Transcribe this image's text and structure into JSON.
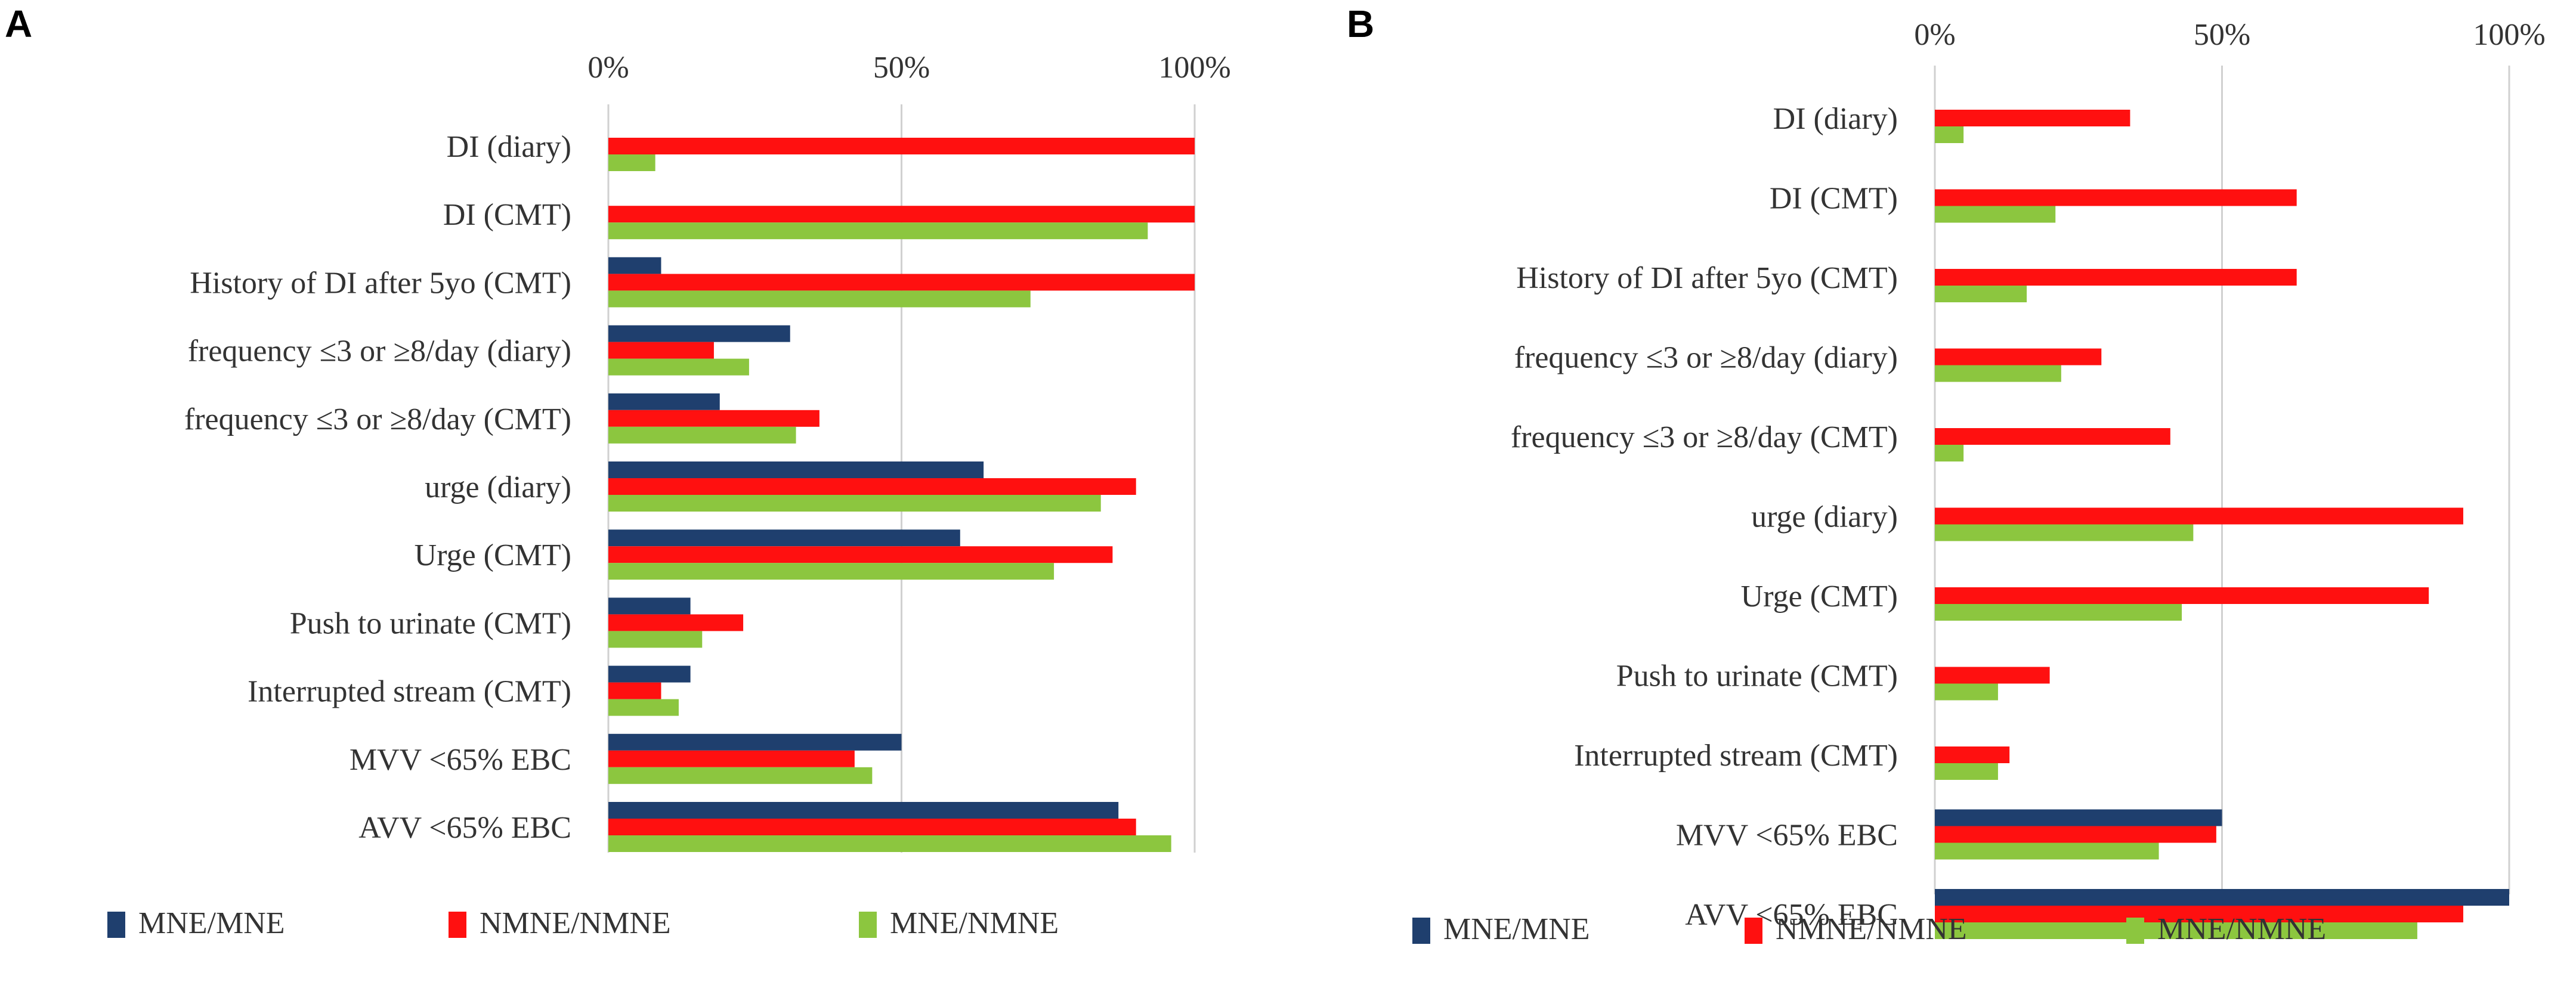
{
  "chart_data": [
    {
      "panel": "A",
      "type": "bar",
      "orientation": "horizontal",
      "xlim": [
        0,
        100
      ],
      "ticks": [
        "0%",
        "50%",
        "100%"
      ],
      "grid": true,
      "legend_position": "bottom",
      "categories": [
        "DI (diary)",
        "DI (CMT)",
        "History of DI after 5yo (CMT)",
        "frequency ≤3  or ≥8/day (diary)",
        "frequency ≤3  or ≥8/day (CMT)",
        "urge (diary)",
        "Urge (CMT)",
        "Push to urinate (CMT)",
        "Interrupted stream (CMT)",
        "MVV <65% EBC",
        "AVV <65% EBC"
      ],
      "series": [
        {
          "name": "MNE/MNE",
          "color": "#1f3f6e",
          "values": [
            0,
            0,
            9,
            31,
            19,
            64,
            60,
            14,
            14,
            50,
            87
          ]
        },
        {
          "name": "NMNE/NMNE",
          "color": "#ff1010",
          "values": [
            100,
            100,
            100,
            18,
            36,
            90,
            86,
            23,
            9,
            42,
            90
          ]
        },
        {
          "name": "MNE/NMNE",
          "color": "#8cc63f",
          "values": [
            8,
            92,
            72,
            24,
            32,
            84,
            76,
            16,
            12,
            45,
            96
          ]
        }
      ]
    },
    {
      "panel": "B",
      "type": "bar",
      "orientation": "horizontal",
      "xlim": [
        0,
        100
      ],
      "ticks": [
        "0%",
        "50%",
        "100%"
      ],
      "grid": true,
      "legend_position": "bottom",
      "categories": [
        "DI (diary)",
        "DI (CMT)",
        "History of DI after 5yo (CMT)",
        "frequency ≤3  or ≥8/day (diary)",
        "frequency ≤3  or ≥8/day (CMT)",
        "urge (diary)",
        "Urge (CMT)",
        "Push to urinate (CMT)",
        "Interrupted stream (CMT)",
        "MVV <65% EBC",
        "AVV <65% EBC"
      ],
      "series": [
        {
          "name": "MNE/MNE",
          "color": "#1f3f6e",
          "values": [
            0,
            0,
            0,
            0,
            0,
            0,
            0,
            0,
            0,
            50,
            100
          ]
        },
        {
          "name": "NMNE/NMNE",
          "color": "#ff1010",
          "values": [
            34,
            63,
            63,
            29,
            41,
            92,
            86,
            20,
            13,
            49,
            92
          ]
        },
        {
          "name": "MNE/NMNE",
          "color": "#8cc63f",
          "values": [
            5,
            21,
            16,
            22,
            5,
            45,
            43,
            11,
            11,
            39,
            84
          ]
        }
      ]
    }
  ]
}
